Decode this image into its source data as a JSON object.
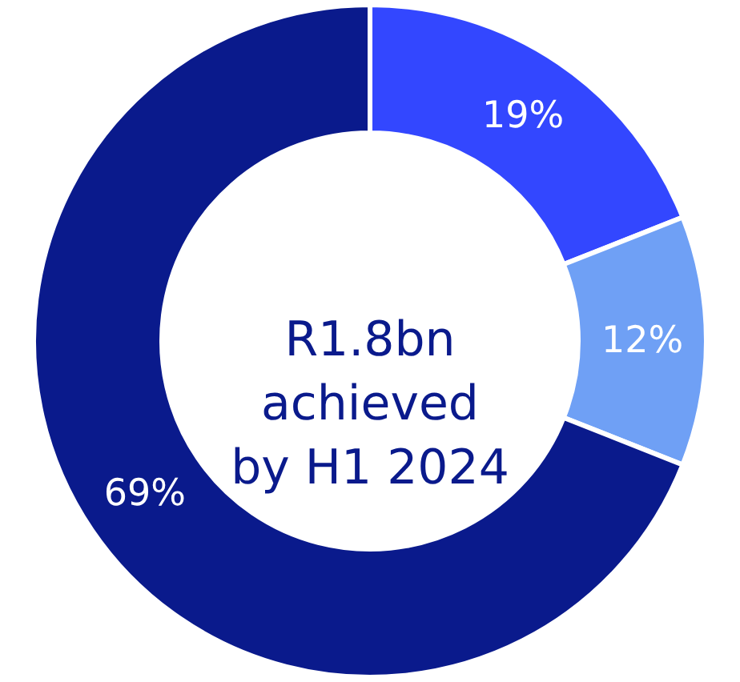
{
  "chart_data": {
    "type": "donut",
    "categories": [
      null,
      null,
      null
    ],
    "values": [
      19,
      12,
      69
    ],
    "value_labels": [
      "19%",
      "12%",
      "69%"
    ],
    "colors": [
      "#3347ff",
      "#6fa0f5",
      "#0a1a8c"
    ],
    "annotations": [
      "R1.8bn achieved by H1 2024"
    ]
  }
}
